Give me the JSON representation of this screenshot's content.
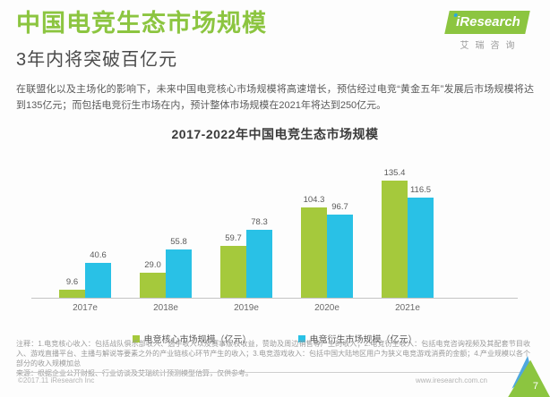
{
  "header": {
    "title": "中国电竞生态市场规模",
    "subtitle": "3年内将突破百亿元",
    "paragraph": "在联盟化以及主场化的影响下，未来中国电竞核心市场规模将高速增长，预估经过电竞“黄金五年”发展后市场规模将达到135亿元；而包括电竞衍生市场在内，预计整体市场规模在2021年将达到250亿元。"
  },
  "logo": {
    "text": "iResearch",
    "subtext": "艾瑞咨询"
  },
  "chart_data": {
    "type": "bar",
    "title": "2017-2022年中国电竞生态市场规模",
    "categories": [
      "2017e",
      "2018e",
      "2019e",
      "2020e",
      "2021e"
    ],
    "series": [
      {
        "name": "电竞核心市场规模（亿元）",
        "color": "#A5C93C",
        "values": [
          9.6,
          29.0,
          59.7,
          104.3,
          135.4
        ]
      },
      {
        "name": "电竞衍生市场规模（亿元）",
        "color": "#29C1E6",
        "values": [
          40.6,
          55.8,
          78.3,
          96.7,
          116.5
        ]
      }
    ],
    "ylim": [
      0,
      145
    ],
    "grid": false,
    "legend_position": "bottom",
    "value_labels": true
  },
  "footnote": {
    "note": "注释：1.电竞核心收入：包括战队俱乐部收入、选手收入以及赛事版权收益，赞助及周边销售等产生的收入；2.电竞衍生收入：包括电竞咨询视频及其配套节目收入、游戏直播平台、主播与解说等要素之外的产业链核心环节产生的收入；3.电竞游戏收入：包括中国大陆地区用户为狭义电竞游戏消费的金额；4.产业规模以各个部分的收入规模加总",
    "source": "来源：根据企业公开财报、行业访谈及艾瑞统计预测模型估算，仅供参考。"
  },
  "footer": {
    "left": "©2017.11 iResearch Inc",
    "right": "www.iresearch.com.cn",
    "page": "7"
  },
  "colors": {
    "brand_green": "#8CC540",
    "bar_green": "#A5C93C",
    "bar_blue": "#29C1E6",
    "corner_blue": "#4FA8DF"
  }
}
